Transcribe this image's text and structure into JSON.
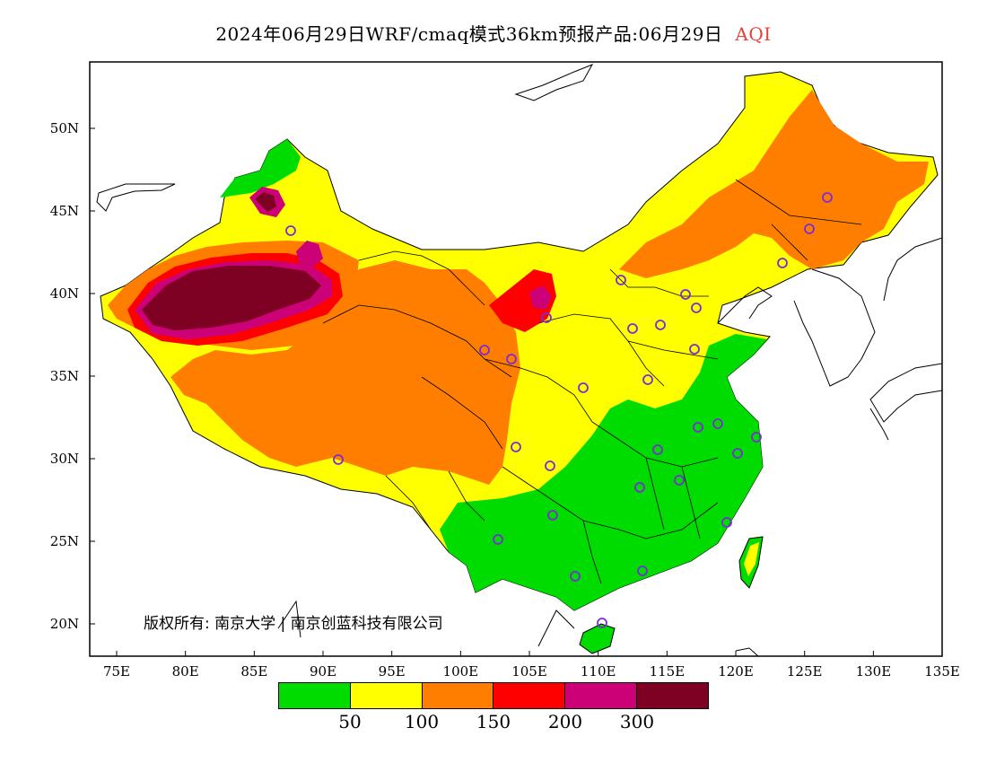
{
  "title": {
    "main": "2024年06月29日WRF/cmaq模式36km预报产品:06月29日",
    "variable": "AQI",
    "variable_color": "#e8403a"
  },
  "axes": {
    "lat_labels": [
      "50N",
      "45N",
      "40N",
      "35N",
      "30N",
      "25N",
      "20N"
    ],
    "lon_labels": [
      "75E",
      "80E",
      "85E",
      "90E",
      "95E",
      "100E",
      "105E",
      "110E",
      "115E",
      "120E",
      "125E",
      "130E",
      "135E"
    ]
  },
  "legend": {
    "colors": [
      "#00dc00",
      "#ffff00",
      "#ff7e00",
      "#ff0000",
      "#cc0077",
      "#7e0023"
    ],
    "labels": [
      "50",
      "100",
      "150",
      "200",
      "300"
    ]
  },
  "copyright": "版权所有: 南京大学 | 南京创蓝科技有限公司",
  "station_marker_color": "#7b2cd6"
}
